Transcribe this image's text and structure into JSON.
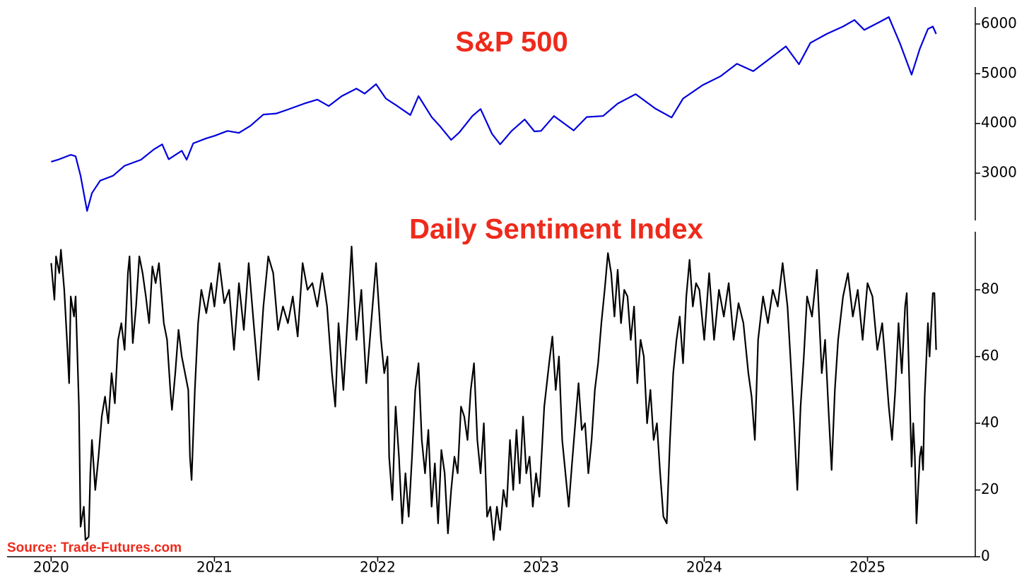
{
  "source": "Source: Trade-Futures.com",
  "chart_data": [
    {
      "type": "line",
      "title": "S&P 500",
      "color": "#0000dd",
      "x": [
        2020.0,
        2020.05,
        2020.12,
        2020.15,
        2020.18,
        2020.22,
        2020.25,
        2020.3,
        2020.38,
        2020.45,
        2020.55,
        2020.63,
        2020.68,
        2020.72,
        2020.8,
        2020.83,
        2020.87,
        2020.95,
        2021.0,
        2021.08,
        2021.15,
        2021.22,
        2021.3,
        2021.38,
        2021.45,
        2021.55,
        2021.63,
        2021.7,
        2021.78,
        2021.87,
        2021.92,
        2021.99,
        2022.05,
        2022.12,
        2022.2,
        2022.25,
        2022.33,
        2022.38,
        2022.45,
        2022.5,
        2022.58,
        2022.63,
        2022.7,
        2022.75,
        2022.82,
        2022.9,
        2022.96,
        2023.0,
        2023.08,
        2023.2,
        2023.28,
        2023.38,
        2023.47,
        2023.58,
        2023.7,
        2023.8,
        2023.87,
        2023.99,
        2024.1,
        2024.2,
        2024.3,
        2024.4,
        2024.5,
        2024.58,
        2024.65,
        2024.75,
        2024.85,
        2024.92,
        2024.98,
        2025.08,
        2025.13,
        2025.2,
        2025.27,
        2025.32,
        2025.37,
        2025.4,
        2025.42
      ],
      "values": [
        3230,
        3280,
        3370,
        3340,
        2950,
        2240,
        2600,
        2850,
        2950,
        3150,
        3270,
        3480,
        3580,
        3280,
        3450,
        3270,
        3600,
        3700,
        3750,
        3850,
        3810,
        3950,
        4180,
        4200,
        4280,
        4400,
        4480,
        4350,
        4550,
        4700,
        4600,
        4790,
        4500,
        4350,
        4170,
        4550,
        4130,
        3950,
        3670,
        3820,
        4150,
        4290,
        3790,
        3580,
        3850,
        4080,
        3840,
        3850,
        4150,
        3860,
        4130,
        4150,
        4400,
        4590,
        4300,
        4120,
        4500,
        4770,
        4950,
        5200,
        5050,
        5300,
        5550,
        5190,
        5620,
        5800,
        5950,
        6080,
        5880,
        6050,
        6140,
        5600,
        4980,
        5500,
        5900,
        5950,
        5800
      ],
      "xlim": [
        2019.73,
        2025.66
      ],
      "ylim": [
        2050,
        6340
      ],
      "yticks": [
        3000,
        4000,
        5000,
        6000
      ]
    },
    {
      "type": "line",
      "title": "Daily Sentiment Index",
      "color": "#000000",
      "x": [
        2020.0,
        2020.02,
        2020.03,
        2020.05,
        2020.06,
        2020.08,
        2020.1,
        2020.11,
        2020.12,
        2020.14,
        2020.15,
        2020.17,
        2020.18,
        2020.2,
        2020.21,
        2020.23,
        2020.24,
        2020.25,
        2020.27,
        2020.29,
        2020.31,
        2020.33,
        2020.35,
        2020.37,
        2020.39,
        2020.41,
        2020.43,
        2020.45,
        2020.47,
        2020.48,
        2020.5,
        2020.52,
        2020.54,
        2020.56,
        2020.58,
        2020.6,
        2020.62,
        2020.64,
        2020.66,
        2020.67,
        2020.69,
        2020.71,
        2020.73,
        2020.74,
        2020.76,
        2020.78,
        2020.8,
        2020.82,
        2020.84,
        2020.85,
        2020.86,
        2020.88,
        2020.9,
        2020.92,
        2020.95,
        2020.98,
        2021.0,
        2021.03,
        2021.06,
        2021.09,
        2021.12,
        2021.15,
        2021.18,
        2021.21,
        2021.24,
        2021.27,
        2021.3,
        2021.33,
        2021.36,
        2021.39,
        2021.42,
        2021.45,
        2021.48,
        2021.51,
        2021.54,
        2021.57,
        2021.6,
        2021.63,
        2021.66,
        2021.69,
        2021.72,
        2021.74,
        2021.76,
        2021.79,
        2021.82,
        2021.84,
        2021.87,
        2021.9,
        2021.93,
        2021.96,
        2021.99,
        2022.02,
        2022.04,
        2022.06,
        2022.07,
        2022.09,
        2022.11,
        2022.13,
        2022.15,
        2022.17,
        2022.19,
        2022.21,
        2022.23,
        2022.25,
        2022.27,
        2022.29,
        2022.31,
        2022.33,
        2022.35,
        2022.37,
        2022.39,
        2022.41,
        2022.43,
        2022.45,
        2022.47,
        2022.49,
        2022.51,
        2022.53,
        2022.55,
        2022.57,
        2022.59,
        2022.61,
        2022.63,
        2022.65,
        2022.67,
        2022.69,
        2022.71,
        2022.73,
        2022.75,
        2022.77,
        2022.79,
        2022.81,
        2022.83,
        2022.85,
        2022.87,
        2022.89,
        2022.91,
        2022.93,
        2022.95,
        2022.97,
        2022.99,
        2023.02,
        2023.05,
        2023.07,
        2023.09,
        2023.11,
        2023.13,
        2023.15,
        2023.17,
        2023.19,
        2023.21,
        2023.23,
        2023.25,
        2023.27,
        2023.29,
        2023.31,
        2023.33,
        2023.35,
        2023.37,
        2023.39,
        2023.41,
        2023.43,
        2023.45,
        2023.47,
        2023.49,
        2023.51,
        2023.53,
        2023.55,
        2023.57,
        2023.59,
        2023.61,
        2023.63,
        2023.65,
        2023.67,
        2023.69,
        2023.71,
        2023.73,
        2023.75,
        2023.77,
        2023.79,
        2023.81,
        2023.83,
        2023.85,
        2023.87,
        2023.89,
        2023.91,
        2023.93,
        2023.95,
        2023.97,
        2024.0,
        2024.03,
        2024.06,
        2024.09,
        2024.12,
        2024.15,
        2024.18,
        2024.21,
        2024.24,
        2024.27,
        2024.29,
        2024.31,
        2024.33,
        2024.36,
        2024.39,
        2024.42,
        2024.45,
        2024.48,
        2024.51,
        2024.53,
        2024.55,
        2024.57,
        2024.59,
        2024.61,
        2024.63,
        2024.66,
        2024.69,
        2024.72,
        2024.74,
        2024.76,
        2024.78,
        2024.8,
        2024.82,
        2024.85,
        2024.88,
        2024.91,
        2024.94,
        2024.97,
        2025.0,
        2025.03,
        2025.06,
        2025.09,
        2025.11,
        2025.13,
        2025.15,
        2025.17,
        2025.19,
        2025.21,
        2025.23,
        2025.24,
        2025.26,
        2025.27,
        2025.28,
        2025.29,
        2025.3,
        2025.31,
        2025.32,
        2025.33,
        2025.34,
        2025.35,
        2025.37,
        2025.38,
        2025.4,
        2025.41,
        2025.42
      ],
      "values": [
        88,
        77,
        90,
        85,
        92,
        80,
        62,
        52,
        78,
        72,
        78,
        45,
        9,
        15,
        5,
        6,
        25,
        35,
        20,
        30,
        42,
        48,
        40,
        55,
        46,
        65,
        70,
        62,
        85,
        90,
        64,
        75,
        90,
        85,
        78,
        70,
        87,
        82,
        88,
        82,
        70,
        65,
        50,
        44,
        55,
        68,
        60,
        55,
        50,
        30,
        23,
        50,
        70,
        80,
        73,
        82,
        75,
        88,
        76,
        80,
        62,
        82,
        68,
        88,
        70,
        53,
        75,
        90,
        85,
        68,
        75,
        70,
        78,
        66,
        88,
        80,
        82,
        75,
        85,
        75,
        55,
        45,
        70,
        50,
        75,
        93,
        65,
        80,
        52,
        70,
        88,
        65,
        55,
        60,
        30,
        17,
        45,
        30,
        10,
        25,
        12,
        30,
        50,
        58,
        35,
        25,
        38,
        15,
        28,
        10,
        32,
        25,
        7,
        20,
        30,
        25,
        45,
        42,
        35,
        50,
        58,
        35,
        25,
        40,
        12,
        15,
        5,
        15,
        8,
        20,
        15,
        35,
        20,
        38,
        22,
        42,
        25,
        30,
        15,
        25,
        18,
        45,
        58,
        66,
        50,
        60,
        35,
        25,
        15,
        28,
        40,
        52,
        38,
        40,
        25,
        35,
        50,
        58,
        70,
        80,
        91,
        85,
        72,
        86,
        70,
        80,
        78,
        65,
        75,
        52,
        65,
        60,
        40,
        50,
        35,
        40,
        25,
        12,
        10,
        35,
        55,
        65,
        72,
        58,
        78,
        89,
        75,
        82,
        80,
        65,
        85,
        65,
        80,
        72,
        82,
        65,
        76,
        70,
        55,
        48,
        35,
        65,
        78,
        70,
        80,
        75,
        88,
        75,
        58,
        40,
        20,
        45,
        60,
        78,
        72,
        86,
        55,
        65,
        45,
        26,
        50,
        65,
        78,
        85,
        72,
        80,
        65,
        82,
        78,
        62,
        70,
        58,
        45,
        35,
        50,
        70,
        55,
        75,
        79,
        45,
        27,
        40,
        30,
        10,
        20,
        30,
        33,
        26,
        48,
        70,
        60,
        79,
        79,
        62
      ],
      "xlim": [
        2019.73,
        2025.66
      ],
      "ylim": [
        0,
        97.4
      ],
      "yticks": [
        0,
        20,
        40,
        60,
        80
      ],
      "xticks": [
        2020,
        2021,
        2022,
        2023,
        2024,
        2025
      ]
    }
  ]
}
